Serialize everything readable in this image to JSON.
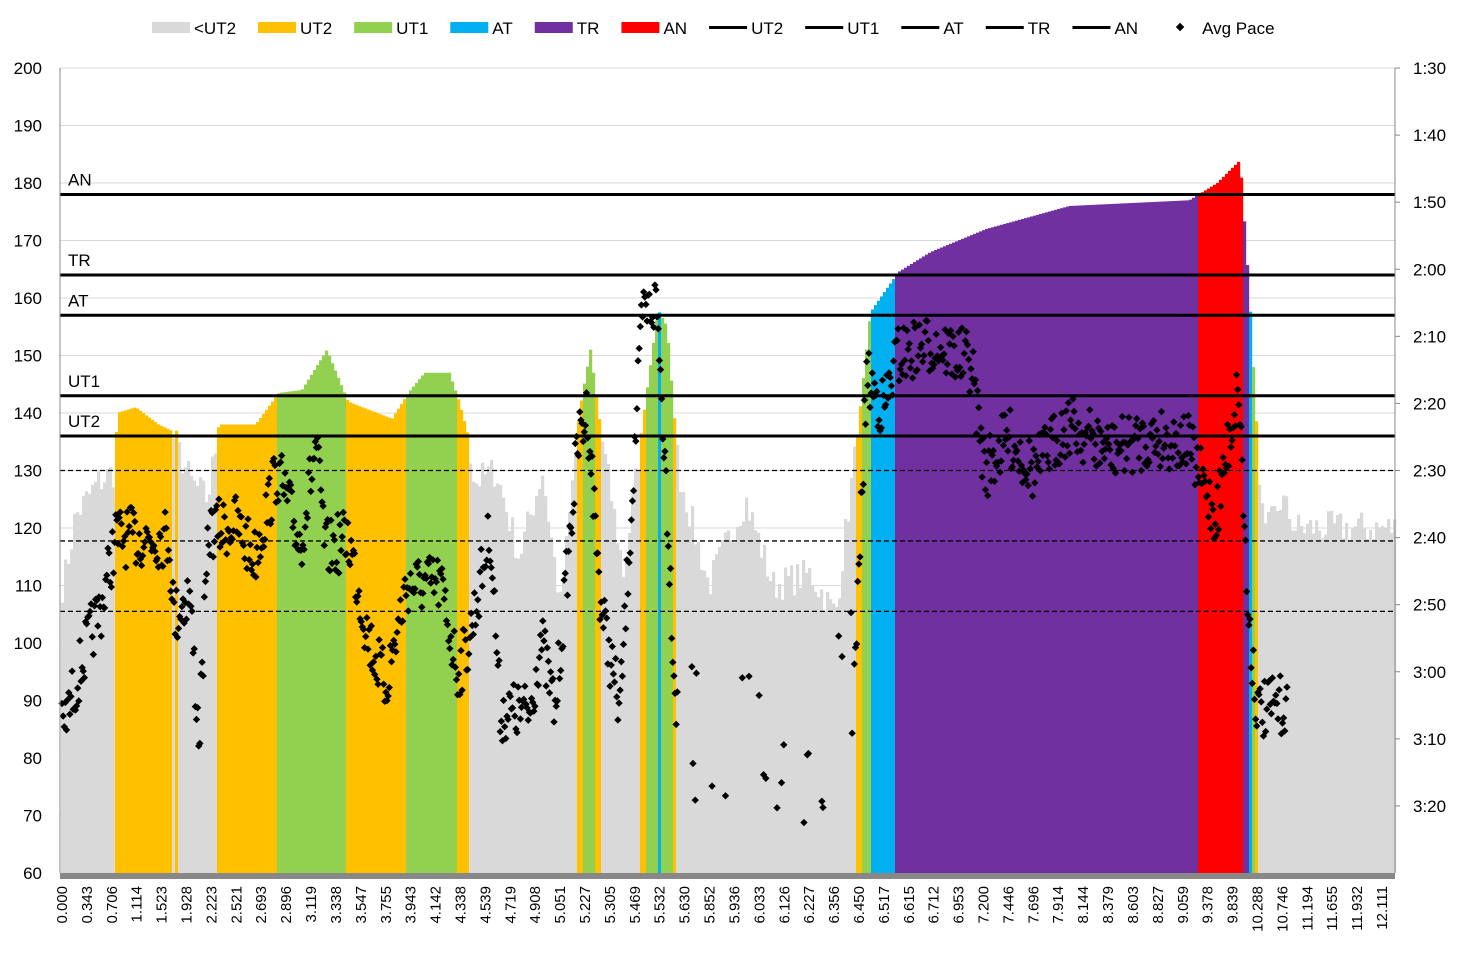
{
  "chart_data": {
    "type": "bar",
    "title": "",
    "legend": {
      "placement": "top",
      "items": [
        {
          "label": "<UT2",
          "kind": "area",
          "color": "#d9d9d9"
        },
        {
          "label": "UT2",
          "kind": "area",
          "color": "#ffc000"
        },
        {
          "label": "UT1",
          "kind": "area",
          "color": "#92d050"
        },
        {
          "label": "AT",
          "kind": "area",
          "color": "#00b0f0"
        },
        {
          "label": "TR",
          "kind": "area",
          "color": "#7030a0"
        },
        {
          "label": "AN",
          "kind": "area",
          "color": "#ff0000"
        },
        {
          "label": "UT2",
          "kind": "line",
          "color": "#000000"
        },
        {
          "label": "UT1",
          "kind": "line",
          "color": "#000000"
        },
        {
          "label": "AT",
          "kind": "line",
          "color": "#000000"
        },
        {
          "label": "TR",
          "kind": "line",
          "color": "#000000"
        },
        {
          "label": "AN",
          "kind": "line",
          "color": "#000000"
        },
        {
          "label": "Avg Pace",
          "kind": "marker",
          "color": "#000000"
        }
      ]
    },
    "x_categories": [
      "0.000",
      "0.343",
      "0.706",
      "1.114",
      "1.523",
      "1.928",
      "2.223",
      "2.521",
      "2.693",
      "2.896",
      "3.119",
      "3.338",
      "3.547",
      "3.755",
      "3.943",
      "4.142",
      "4.338",
      "4.539",
      "4.719",
      "4.908",
      "5.051",
      "5.227",
      "5.305",
      "5.469",
      "5.532",
      "5.630",
      "5.852",
      "5.936",
      "6.033",
      "6.126",
      "6.227",
      "6.356",
      "6.450",
      "6.517",
      "6.615",
      "6.712",
      "6.953",
      "7.200",
      "7.446",
      "7.696",
      "7.914",
      "8.144",
      "8.379",
      "8.603",
      "8.827",
      "9.059",
      "9.378",
      "9.839",
      "10.288",
      "10.746",
      "11.194",
      "11.655",
      "11.932",
      "12.111"
    ],
    "y_left": {
      "label": "",
      "min": 60,
      "max": 200,
      "step": 10,
      "ticks": [
        "60",
        "70",
        "80",
        "90",
        "100",
        "110",
        "120",
        "130",
        "140",
        "150",
        "160",
        "170",
        "180",
        "190",
        "200"
      ]
    },
    "y_right": {
      "label": "",
      "min_seconds": 90,
      "max_seconds": 210,
      "reversed": true,
      "ticks": [
        "1:30",
        "1:40",
        "1:50",
        "2:00",
        "2:10",
        "2:20",
        "2:30",
        "2:40",
        "2:50",
        "3:00",
        "3:10",
        "3:20"
      ]
    },
    "zones": [
      {
        "name": "<UT2",
        "below": 136,
        "color": "#d9d9d9"
      },
      {
        "name": "UT2",
        "below": 143,
        "color": "#ffc000"
      },
      {
        "name": "UT1",
        "below": 157,
        "color": "#92d050"
      },
      {
        "name": "AT",
        "below": 164,
        "color": "#00b0f0"
      },
      {
        "name": "TR",
        "below": 178,
        "color": "#7030a0"
      },
      {
        "name": "AN",
        "below": 999,
        "color": "#ff0000"
      }
    ],
    "threshold_lines": [
      {
        "label": "AN",
        "value": 178
      },
      {
        "label": "TR",
        "value": 164
      },
      {
        "label": "AT",
        "value": 157
      },
      {
        "label": "UT1",
        "value": 143
      },
      {
        "label": "UT2",
        "value": 136
      }
    ],
    "dashed_pace_lines_seconds": [
      150,
      160.5,
      171
    ],
    "heart_rate_profile": [
      [
        0,
        110
      ],
      [
        0.48,
        122
      ],
      [
        1.41,
        128
      ],
      [
        2.1,
        130
      ],
      [
        2.15,
        140
      ],
      [
        2.9,
        141
      ],
      [
        3.82,
        138
      ],
      [
        4.3,
        137
      ],
      [
        5.12,
        128
      ],
      [
        5.8,
        125
      ],
      [
        6.24,
        138
      ],
      [
        7.72,
        138
      ],
      [
        8.65,
        143.5
      ],
      [
        9.58,
        144
      ],
      [
        10.58,
        151
      ],
      [
        11.43,
        142
      ],
      [
        12.0,
        141
      ],
      [
        13.2,
        139
      ],
      [
        13.85,
        143.5
      ],
      [
        14.5,
        147
      ],
      [
        15.5,
        147
      ],
      [
        15.89,
        142
      ],
      [
        16.26,
        136
      ],
      [
        16.5,
        128
      ],
      [
        17.37,
        130
      ],
      [
        18.3,
        115
      ],
      [
        19.23,
        130
      ],
      [
        19.97,
        106
      ],
      [
        20.71,
        140
      ],
      [
        21.16,
        151
      ],
      [
        21.64,
        135
      ],
      [
        22.5,
        112
      ],
      [
        23.31,
        140
      ],
      [
        23.87,
        158
      ],
      [
        24.24,
        155
      ],
      [
        24.7,
        130
      ],
      [
        25.91,
        110
      ],
      [
        27.39,
        125
      ],
      [
        28.5,
        110
      ],
      [
        29.99,
        112
      ],
      [
        31.0,
        105
      ],
      [
        31.85,
        135
      ],
      [
        32.4,
        157.5
      ],
      [
        33.52,
        164.5
      ],
      [
        34.82,
        168
      ],
      [
        37.05,
        172
      ],
      [
        40.39,
        176
      ],
      [
        45.21,
        177
      ],
      [
        46.33,
        180
      ],
      [
        47.25,
        184
      ],
      [
        47.63,
        160
      ],
      [
        47.88,
        140
      ],
      [
        48.2,
        118
      ],
      [
        48.9,
        125
      ],
      [
        49.48,
        120
      ]
    ],
    "avg_pace_profile_seconds": [
      [
        0,
        189
      ],
      [
        1.0,
        176
      ],
      [
        1.6,
        170
      ],
      [
        2.15,
        160
      ],
      [
        4.3,
        160
      ],
      [
        4.5,
        172
      ],
      [
        5.12,
        168
      ],
      [
        5.5,
        190
      ],
      [
        5.9,
        159
      ],
      [
        7.0,
        158
      ],
      [
        7.72,
        163
      ],
      [
        8.65,
        150
      ],
      [
        9.58,
        161
      ],
      [
        10.2,
        146
      ],
      [
        10.58,
        162
      ],
      [
        11.5,
        160
      ],
      [
        12.3,
        175
      ],
      [
        13.0,
        182
      ],
      [
        13.85,
        167
      ],
      [
        15.2,
        167
      ],
      [
        15.89,
        180
      ],
      [
        16.3,
        176
      ],
      [
        17.2,
        159
      ],
      [
        17.6,
        186
      ],
      [
        18.8,
        186
      ],
      [
        19.23,
        175
      ],
      [
        19.8,
        186
      ],
      [
        20.71,
        146
      ],
      [
        21.1,
        141
      ],
      [
        21.64,
        170
      ],
      [
        22.4,
        186
      ],
      [
        23.3,
        127
      ],
      [
        23.87,
        125
      ],
      [
        24.24,
        150
      ],
      [
        24.7,
        190
      ],
      [
        27.39,
        190
      ],
      [
        29.99,
        195
      ],
      [
        31.85,
        180
      ],
      [
        32.3,
        136
      ],
      [
        33.0,
        141
      ],
      [
        33.52,
        133
      ],
      [
        35.0,
        131
      ],
      [
        36.5,
        134
      ],
      [
        37.05,
        150
      ],
      [
        38.0,
        145
      ],
      [
        39.0,
        150
      ],
      [
        40.39,
        143
      ],
      [
        42.0,
        147
      ],
      [
        44.0,
        145
      ],
      [
        45.21,
        146
      ],
      [
        46.33,
        157
      ],
      [
        47.25,
        137
      ],
      [
        47.6,
        170
      ],
      [
        48.0,
        186
      ],
      [
        49.0,
        185
      ]
    ]
  }
}
